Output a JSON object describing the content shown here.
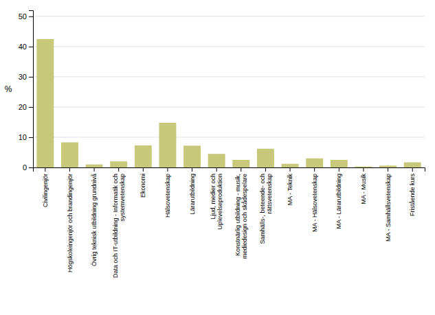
{
  "chart_data": {
    "type": "bar",
    "categories": [
      "Civilingenjör",
      "Högskoleingenjör och brandingenjör",
      "Övrig teknisk utbildning grundnivå",
      "Data och IT-utbildning - Informatik och\nsystemvetenskap",
      "Ekonomi",
      "Hälsovetenskap",
      "Lärarutbildning",
      "Ljud, medier och\nUplevelseproduktion",
      "Konstnärlig utbildning - musik,\nmediedesign och skådespelare",
      "Samhälls-, beteende- och\nrättsvetenskap",
      "MA - Teknik",
      "MA - Hälsovetenskap",
      "MA - Lärarutbildning",
      "MA - Musik",
      "MA - Samhällsvetenskap",
      "Fristående kurs"
    ],
    "values": [
      42.5,
      8.3,
      1.0,
      2.0,
      7.3,
      14.8,
      7.2,
      4.5,
      2.5,
      6.2,
      1.2,
      3.0,
      2.5,
      0.3,
      0.6,
      1.7
    ],
    "color": "#c8c87a",
    "ylabel": "%",
    "ylim": [
      0,
      52
    ],
    "yticks": [
      0,
      10,
      20,
      30,
      40,
      50
    ],
    "grid": true
  }
}
